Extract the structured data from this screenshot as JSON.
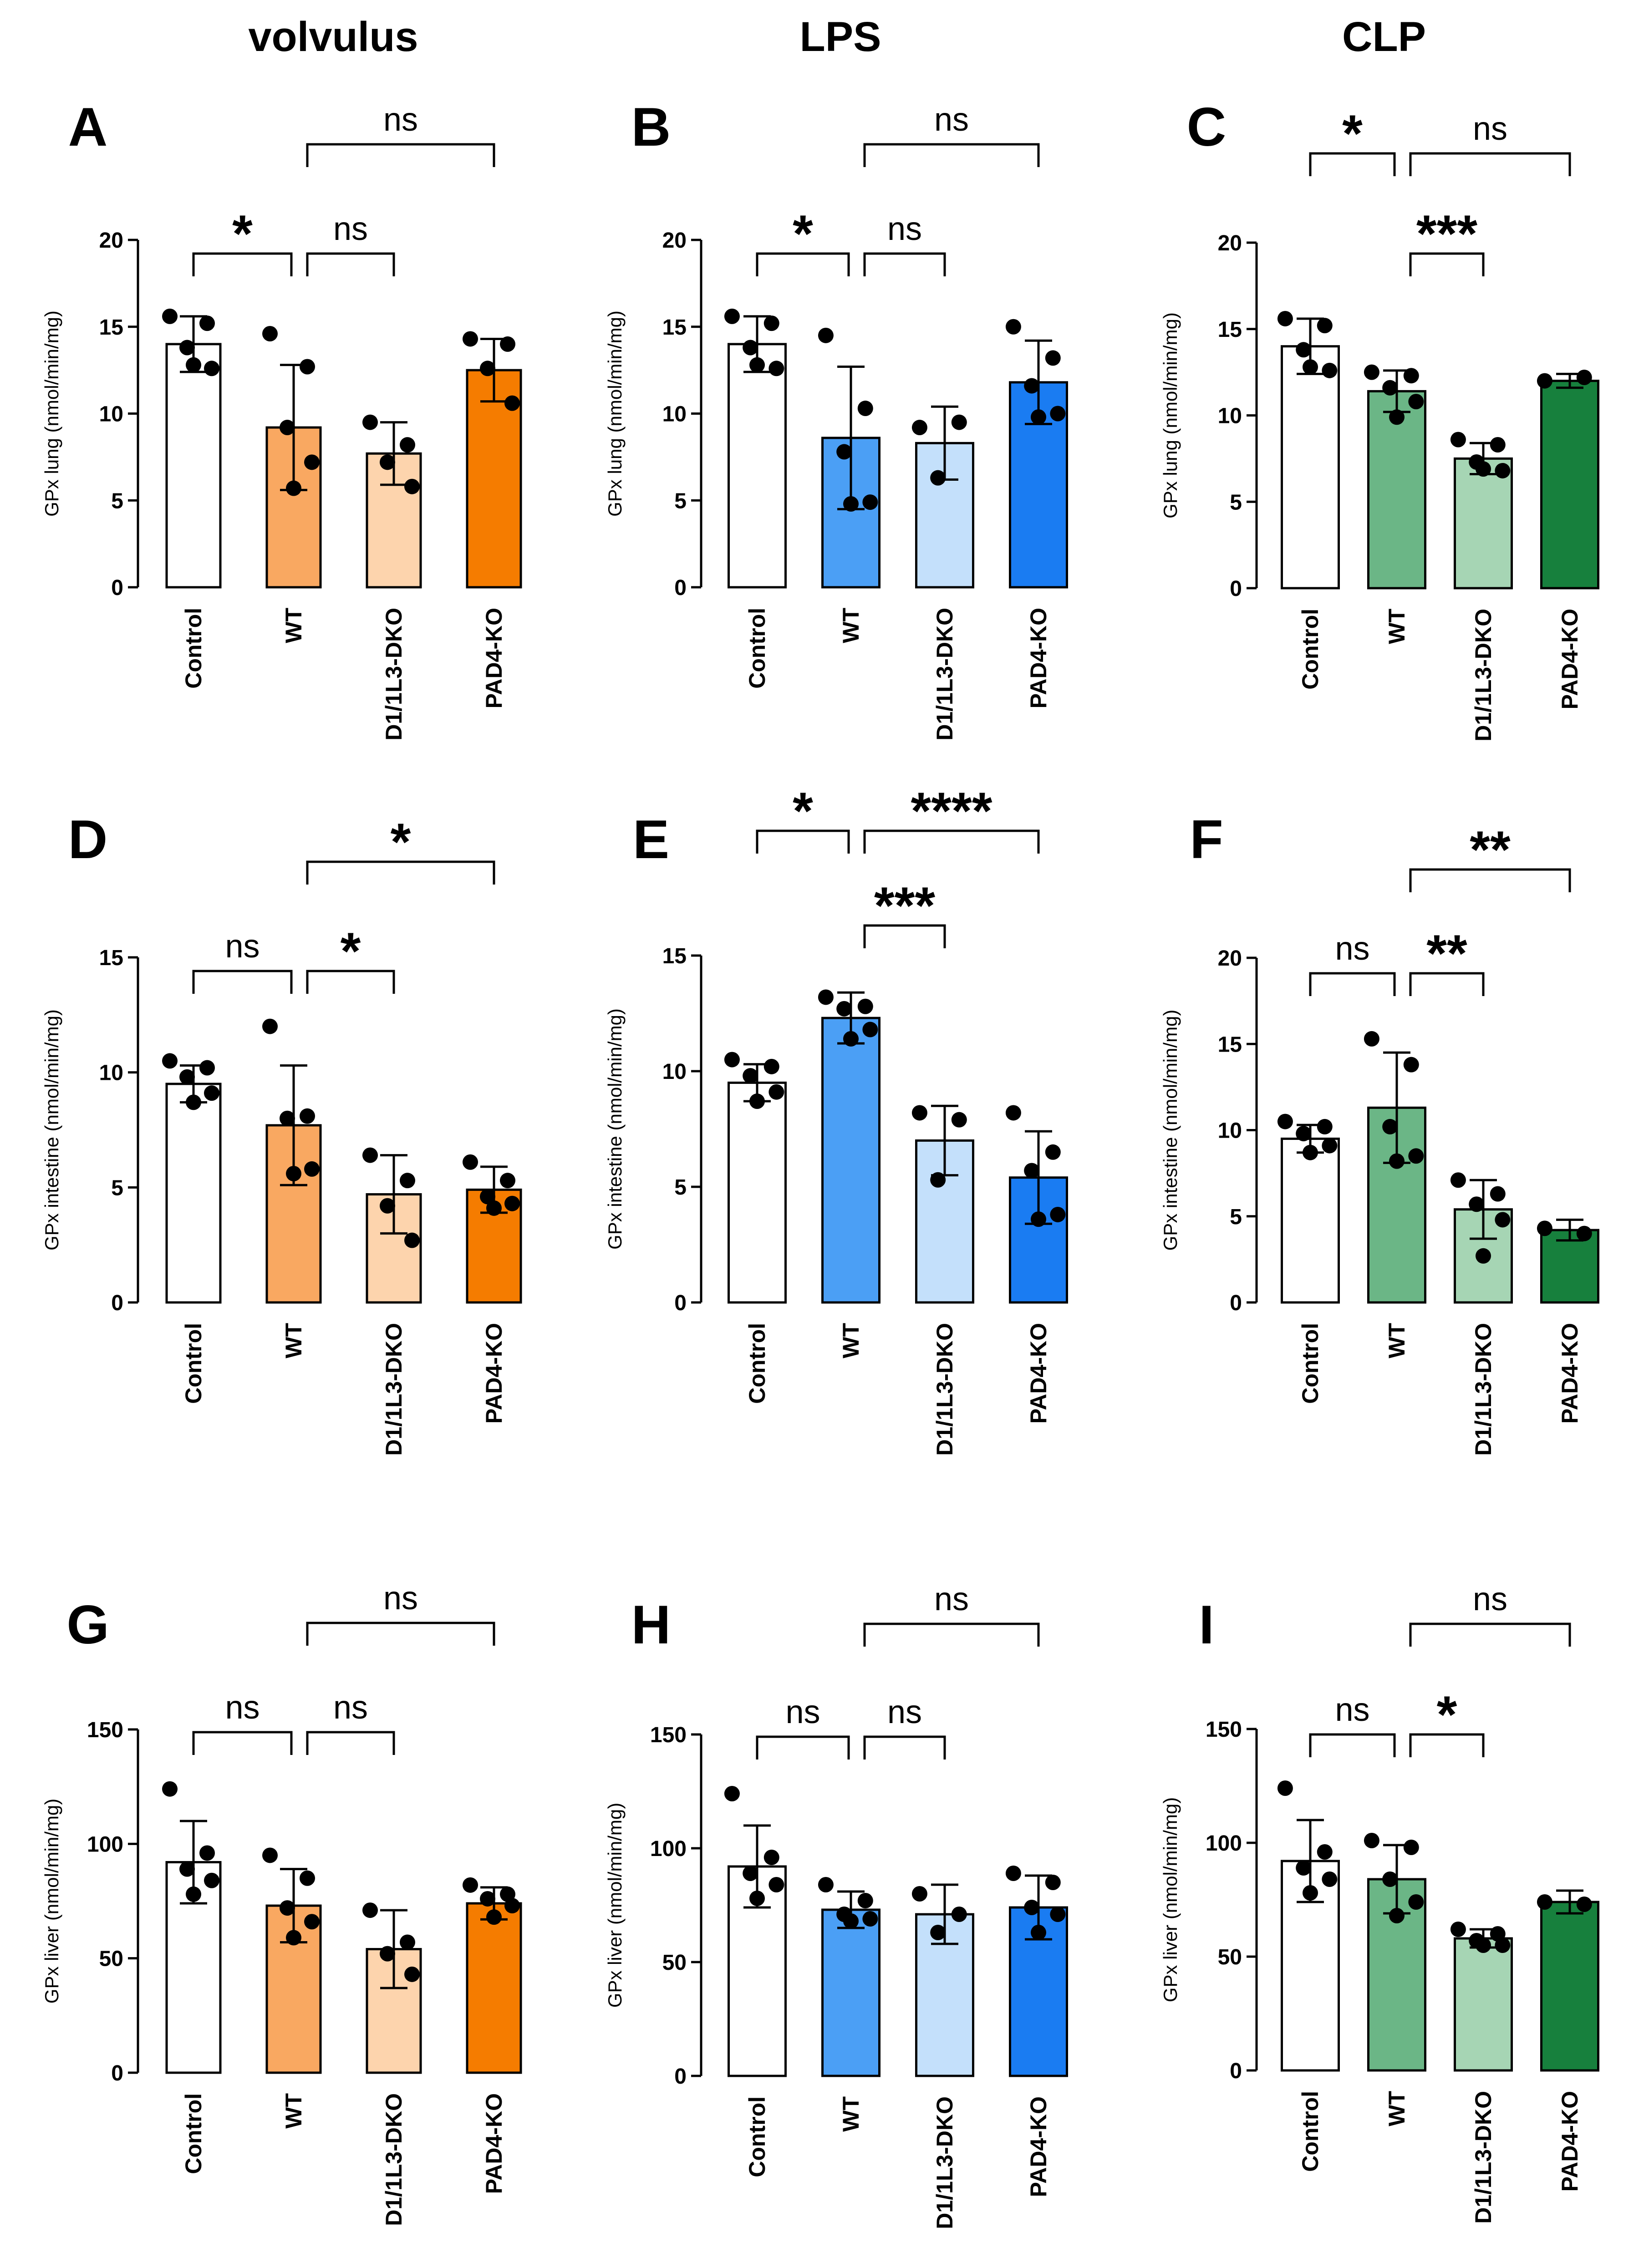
{
  "column_titles": [
    "volvulus",
    "LPS",
    "CLP"
  ],
  "chart_data": [
    {
      "panel": "A",
      "type": "bar",
      "ylabel": "GPx lung (nmol/min/mg)",
      "ylim": [
        0,
        20
      ],
      "yticks": [
        0,
        5,
        10,
        15,
        20
      ],
      "categories": [
        "Control",
        "WT",
        "D1/1L3-DKO",
        "PAD4-KO"
      ],
      "colors": [
        "#ffffff",
        "#f9a861",
        "#fdd4ad",
        "#f57c00"
      ],
      "values": [
        14.0,
        9.2,
        7.7,
        12.5
      ],
      "sd": [
        1.6,
        3.6,
        1.8,
        1.8
      ],
      "points": [
        [
          15.6,
          15.2,
          13.8,
          12.6,
          12.8
        ],
        [
          14.6,
          12.7,
          9.2,
          7.2,
          5.7
        ],
        [
          9.5,
          8.2,
          7.2,
          5.8
        ],
        [
          14.3,
          14.0,
          12.6,
          10.6
        ]
      ],
      "comparisons": [
        {
          "from": 0,
          "to": 1,
          "label": "*"
        },
        {
          "from": 1,
          "to": 2,
          "label": "ns"
        },
        {
          "from": 1,
          "to": 3,
          "label": "ns"
        }
      ]
    },
    {
      "panel": "B",
      "type": "bar",
      "ylabel": "GPx lung (nmol/min/mg)",
      "ylim": [
        0,
        20
      ],
      "yticks": [
        0,
        5,
        10,
        15,
        20
      ],
      "categories": [
        "Control",
        "WT",
        "D1/1L3-DKO",
        "PAD4-KO"
      ],
      "colors": [
        "#ffffff",
        "#4b9ff5",
        "#c4e0fb",
        "#1a7cf2"
      ],
      "values": [
        14.0,
        8.6,
        8.3,
        11.8
      ],
      "sd": [
        1.6,
        4.1,
        2.1,
        2.4
      ],
      "points": [
        [
          15.6,
          15.2,
          13.8,
          12.6,
          12.8
        ],
        [
          14.5,
          10.3,
          7.8,
          4.9,
          4.8
        ],
        [
          9.2,
          9.5,
          6.3
        ],
        [
          15.0,
          13.2,
          11.6,
          10.0,
          9.8
        ]
      ],
      "comparisons": [
        {
          "from": 0,
          "to": 1,
          "label": "*"
        },
        {
          "from": 1,
          "to": 2,
          "label": "ns"
        },
        {
          "from": 1,
          "to": 3,
          "label": "ns"
        }
      ]
    },
    {
      "panel": "C",
      "type": "bar",
      "ylabel": "GPx lung (nmol/min/mg)",
      "ylim": [
        0,
        20
      ],
      "yticks": [
        0,
        5,
        10,
        15,
        20
      ],
      "categories": [
        "Control",
        "WT",
        "D1/1L3-DKO",
        "PAD4-KO"
      ],
      "colors": [
        "#ffffff",
        "#6bb686",
        "#a6d5b4",
        "#17803d"
      ],
      "values": [
        14.0,
        11.4,
        7.5,
        12.0
      ],
      "sd": [
        1.6,
        1.2,
        0.9,
        0.4
      ],
      "points": [
        [
          15.6,
          15.2,
          13.8,
          12.6,
          12.8
        ],
        [
          12.5,
          12.3,
          11.6,
          10.8,
          9.9
        ],
        [
          8.6,
          8.3,
          7.3,
          6.8,
          6.9
        ],
        [
          12.0,
          12.2
        ]
      ],
      "comparisons": [
        {
          "from": 0,
          "to": 1,
          "label": "*"
        },
        {
          "from": 1,
          "to": 3,
          "label": "ns"
        },
        {
          "from": 1,
          "to": 2,
          "label": "***"
        }
      ]
    },
    {
      "panel": "D",
      "type": "bar",
      "ylabel": "GPx intestine (nmol/min/mg)",
      "ylim": [
        0,
        15
      ],
      "yticks": [
        0,
        5,
        10,
        15
      ],
      "categories": [
        "Control",
        "WT",
        "D1/1L3-DKO",
        "PAD4-KO"
      ],
      "colors": [
        "#ffffff",
        "#f9a861",
        "#fdd4ad",
        "#f57c00"
      ],
      "values": [
        9.5,
        7.7,
        4.7,
        4.9
      ],
      "sd": [
        0.8,
        2.6,
        1.7,
        1.0
      ],
      "points": [
        [
          10.5,
          10.2,
          9.8,
          9.1,
          8.7
        ],
        [
          12.0,
          8.1,
          8.0,
          5.8,
          5.6
        ],
        [
          6.4,
          5.3,
          4.2,
          2.7
        ],
        [
          6.1,
          5.3,
          4.6,
          4.3,
          4.1
        ]
      ],
      "comparisons": [
        {
          "from": 0,
          "to": 1,
          "label": "ns"
        },
        {
          "from": 1,
          "to": 2,
          "label": "*"
        },
        {
          "from": 1,
          "to": 3,
          "label": "*"
        }
      ]
    },
    {
      "panel": "E",
      "type": "bar",
      "ylabel": "GPx intestine (nmol/min/mg)",
      "ylim": [
        0,
        15
      ],
      "yticks": [
        0,
        5,
        10,
        15
      ],
      "categories": [
        "Control",
        "WT",
        "D1/1L3-DKO",
        "PAD4-KO"
      ],
      "colors": [
        "#ffffff",
        "#4b9ff5",
        "#c4e0fb",
        "#1a7cf2"
      ],
      "values": [
        9.5,
        12.3,
        7.0,
        5.4
      ],
      "sd": [
        0.8,
        1.1,
        1.5,
        2.0
      ],
      "points": [
        [
          10.5,
          10.2,
          9.8,
          9.1,
          8.7
        ],
        [
          13.2,
          12.8,
          12.7,
          11.8,
          11.4
        ],
        [
          8.2,
          7.9,
          5.3
        ],
        [
          8.2,
          6.5,
          5.7,
          3.8,
          3.6
        ]
      ],
      "comparisons": [
        {
          "from": 0,
          "to": 1,
          "label": "*"
        },
        {
          "from": 1,
          "to": 3,
          "label": "****"
        },
        {
          "from": 1,
          "to": 2,
          "label": "***"
        }
      ]
    },
    {
      "panel": "F",
      "type": "bar",
      "ylabel": "GPx intestine (nmol/min/mg)",
      "ylim": [
        0,
        20
      ],
      "yticks": [
        0,
        5,
        10,
        15,
        20
      ],
      "categories": [
        "Control",
        "WT",
        "D1/1L3-DKO",
        "PAD4-KO"
      ],
      "colors": [
        "#ffffff",
        "#6bb686",
        "#a6d5b4",
        "#17803d"
      ],
      "values": [
        9.5,
        11.3,
        5.4,
        4.2
      ],
      "sd": [
        0.8,
        3.2,
        1.7,
        0.6
      ],
      "points": [
        [
          10.5,
          10.2,
          9.8,
          9.1,
          8.7
        ],
        [
          15.3,
          13.8,
          10.2,
          8.5,
          8.2
        ],
        [
          7.1,
          6.3,
          5.7,
          4.8,
          2.7
        ],
        [
          4.3,
          4.0
        ]
      ],
      "comparisons": [
        {
          "from": 0,
          "to": 1,
          "label": "ns"
        },
        {
          "from": 1,
          "to": 2,
          "label": "**"
        },
        {
          "from": 1,
          "to": 3,
          "label": "**"
        }
      ]
    },
    {
      "panel": "G",
      "type": "bar",
      "ylabel": "GPx liver (nmol/min/mg)",
      "ylim": [
        0,
        150
      ],
      "yticks": [
        0,
        50,
        100,
        150
      ],
      "categories": [
        "Control",
        "WT",
        "D1/1L3-DKO",
        "PAD4-KO"
      ],
      "colors": [
        "#ffffff",
        "#f9a861",
        "#fdd4ad",
        "#f57c00"
      ],
      "values": [
        92,
        73,
        54,
        74
      ],
      "sd": [
        18,
        16,
        17,
        7
      ],
      "points": [
        [
          124,
          96,
          89,
          84,
          78
        ],
        [
          95,
          85,
          72,
          66,
          59
        ],
        [
          71,
          57,
          52,
          43
        ],
        [
          82,
          78,
          76,
          73,
          68
        ]
      ],
      "comparisons": [
        {
          "from": 0,
          "to": 1,
          "label": "ns"
        },
        {
          "from": 1,
          "to": 2,
          "label": "ns"
        },
        {
          "from": 1,
          "to": 3,
          "label": "ns"
        }
      ]
    },
    {
      "panel": "H",
      "type": "bar",
      "ylabel": "GPx liver (nmol/min/mg)",
      "ylim": [
        0,
        150
      ],
      "yticks": [
        0,
        50,
        100,
        150
      ],
      "categories": [
        "Control",
        "WT",
        "D1/1L3-DKO",
        "PAD4-KO"
      ],
      "colors": [
        "#ffffff",
        "#4b9ff5",
        "#c4e0fb",
        "#1a7cf2"
      ],
      "values": [
        92,
        73,
        71,
        74
      ],
      "sd": [
        18,
        8,
        13,
        14
      ],
      "points": [
        [
          124,
          96,
          89,
          84,
          78
        ],
        [
          84,
          77,
          71,
          69,
          68
        ],
        [
          80,
          71,
          63
        ],
        [
          89,
          85,
          74,
          71,
          63
        ]
      ],
      "comparisons": [
        {
          "from": 0,
          "to": 1,
          "label": "ns"
        },
        {
          "from": 1,
          "to": 2,
          "label": "ns"
        },
        {
          "from": 1,
          "to": 3,
          "label": "ns"
        }
      ]
    },
    {
      "panel": "I",
      "type": "bar",
      "ylabel": "GPx liver (nmol/min/mg)",
      "ylim": [
        0,
        150
      ],
      "yticks": [
        0,
        50,
        100,
        150
      ],
      "categories": [
        "Control",
        "WT",
        "D1/1L3-DKO",
        "PAD4-KO"
      ],
      "colors": [
        "#ffffff",
        "#6bb686",
        "#a6d5b4",
        "#17803d"
      ],
      "values": [
        92,
        84,
        58,
        74
      ],
      "sd": [
        18,
        15,
        4,
        5
      ],
      "points": [
        [
          124,
          96,
          89,
          84,
          78
        ],
        [
          101,
          98,
          84,
          74,
          68
        ],
        [
          62,
          60,
          57,
          55,
          55
        ],
        [
          74,
          73
        ]
      ],
      "comparisons": [
        {
          "from": 0,
          "to": 1,
          "label": "ns"
        },
        {
          "from": 1,
          "to": 2,
          "label": "*"
        },
        {
          "from": 1,
          "to": 3,
          "label": "ns"
        }
      ]
    }
  ]
}
